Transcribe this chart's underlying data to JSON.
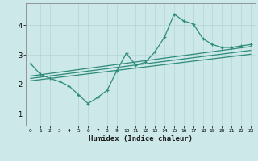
{
  "xlabel": "Humidex (Indice chaleur)",
  "ylabel": "",
  "bg_color": "#cce8e8",
  "grid_color": "#b8d8d8",
  "line_color": "#2e8b7a",
  "xlim": [
    -0.5,
    23.5
  ],
  "ylim": [
    0.6,
    4.75
  ],
  "yticks": [
    1,
    2,
    3,
    4
  ],
  "xticks": [
    0,
    1,
    2,
    3,
    4,
    5,
    6,
    7,
    8,
    9,
    10,
    11,
    12,
    13,
    14,
    15,
    16,
    17,
    18,
    19,
    20,
    21,
    22,
    23
  ],
  "line1_x": [
    0,
    1,
    2,
    3,
    4,
    5,
    6,
    7,
    8,
    9,
    10,
    11,
    12,
    13,
    14,
    15,
    16,
    17,
    18,
    19,
    20,
    21,
    22,
    23
  ],
  "line1_y": [
    2.7,
    2.35,
    2.2,
    2.1,
    1.95,
    1.65,
    1.35,
    1.55,
    1.8,
    2.45,
    3.05,
    2.65,
    2.75,
    3.1,
    3.6,
    4.38,
    4.15,
    4.05,
    3.55,
    3.35,
    3.25,
    3.25,
    3.3,
    3.35
  ],
  "trend1_x": [
    0,
    23
  ],
  "trend1_y": [
    2.28,
    3.28
  ],
  "trend2_x": [
    0,
    23
  ],
  "trend2_y": [
    2.2,
    3.15
  ],
  "trend3_x": [
    0,
    23
  ],
  "trend3_y": [
    2.12,
    3.02
  ]
}
